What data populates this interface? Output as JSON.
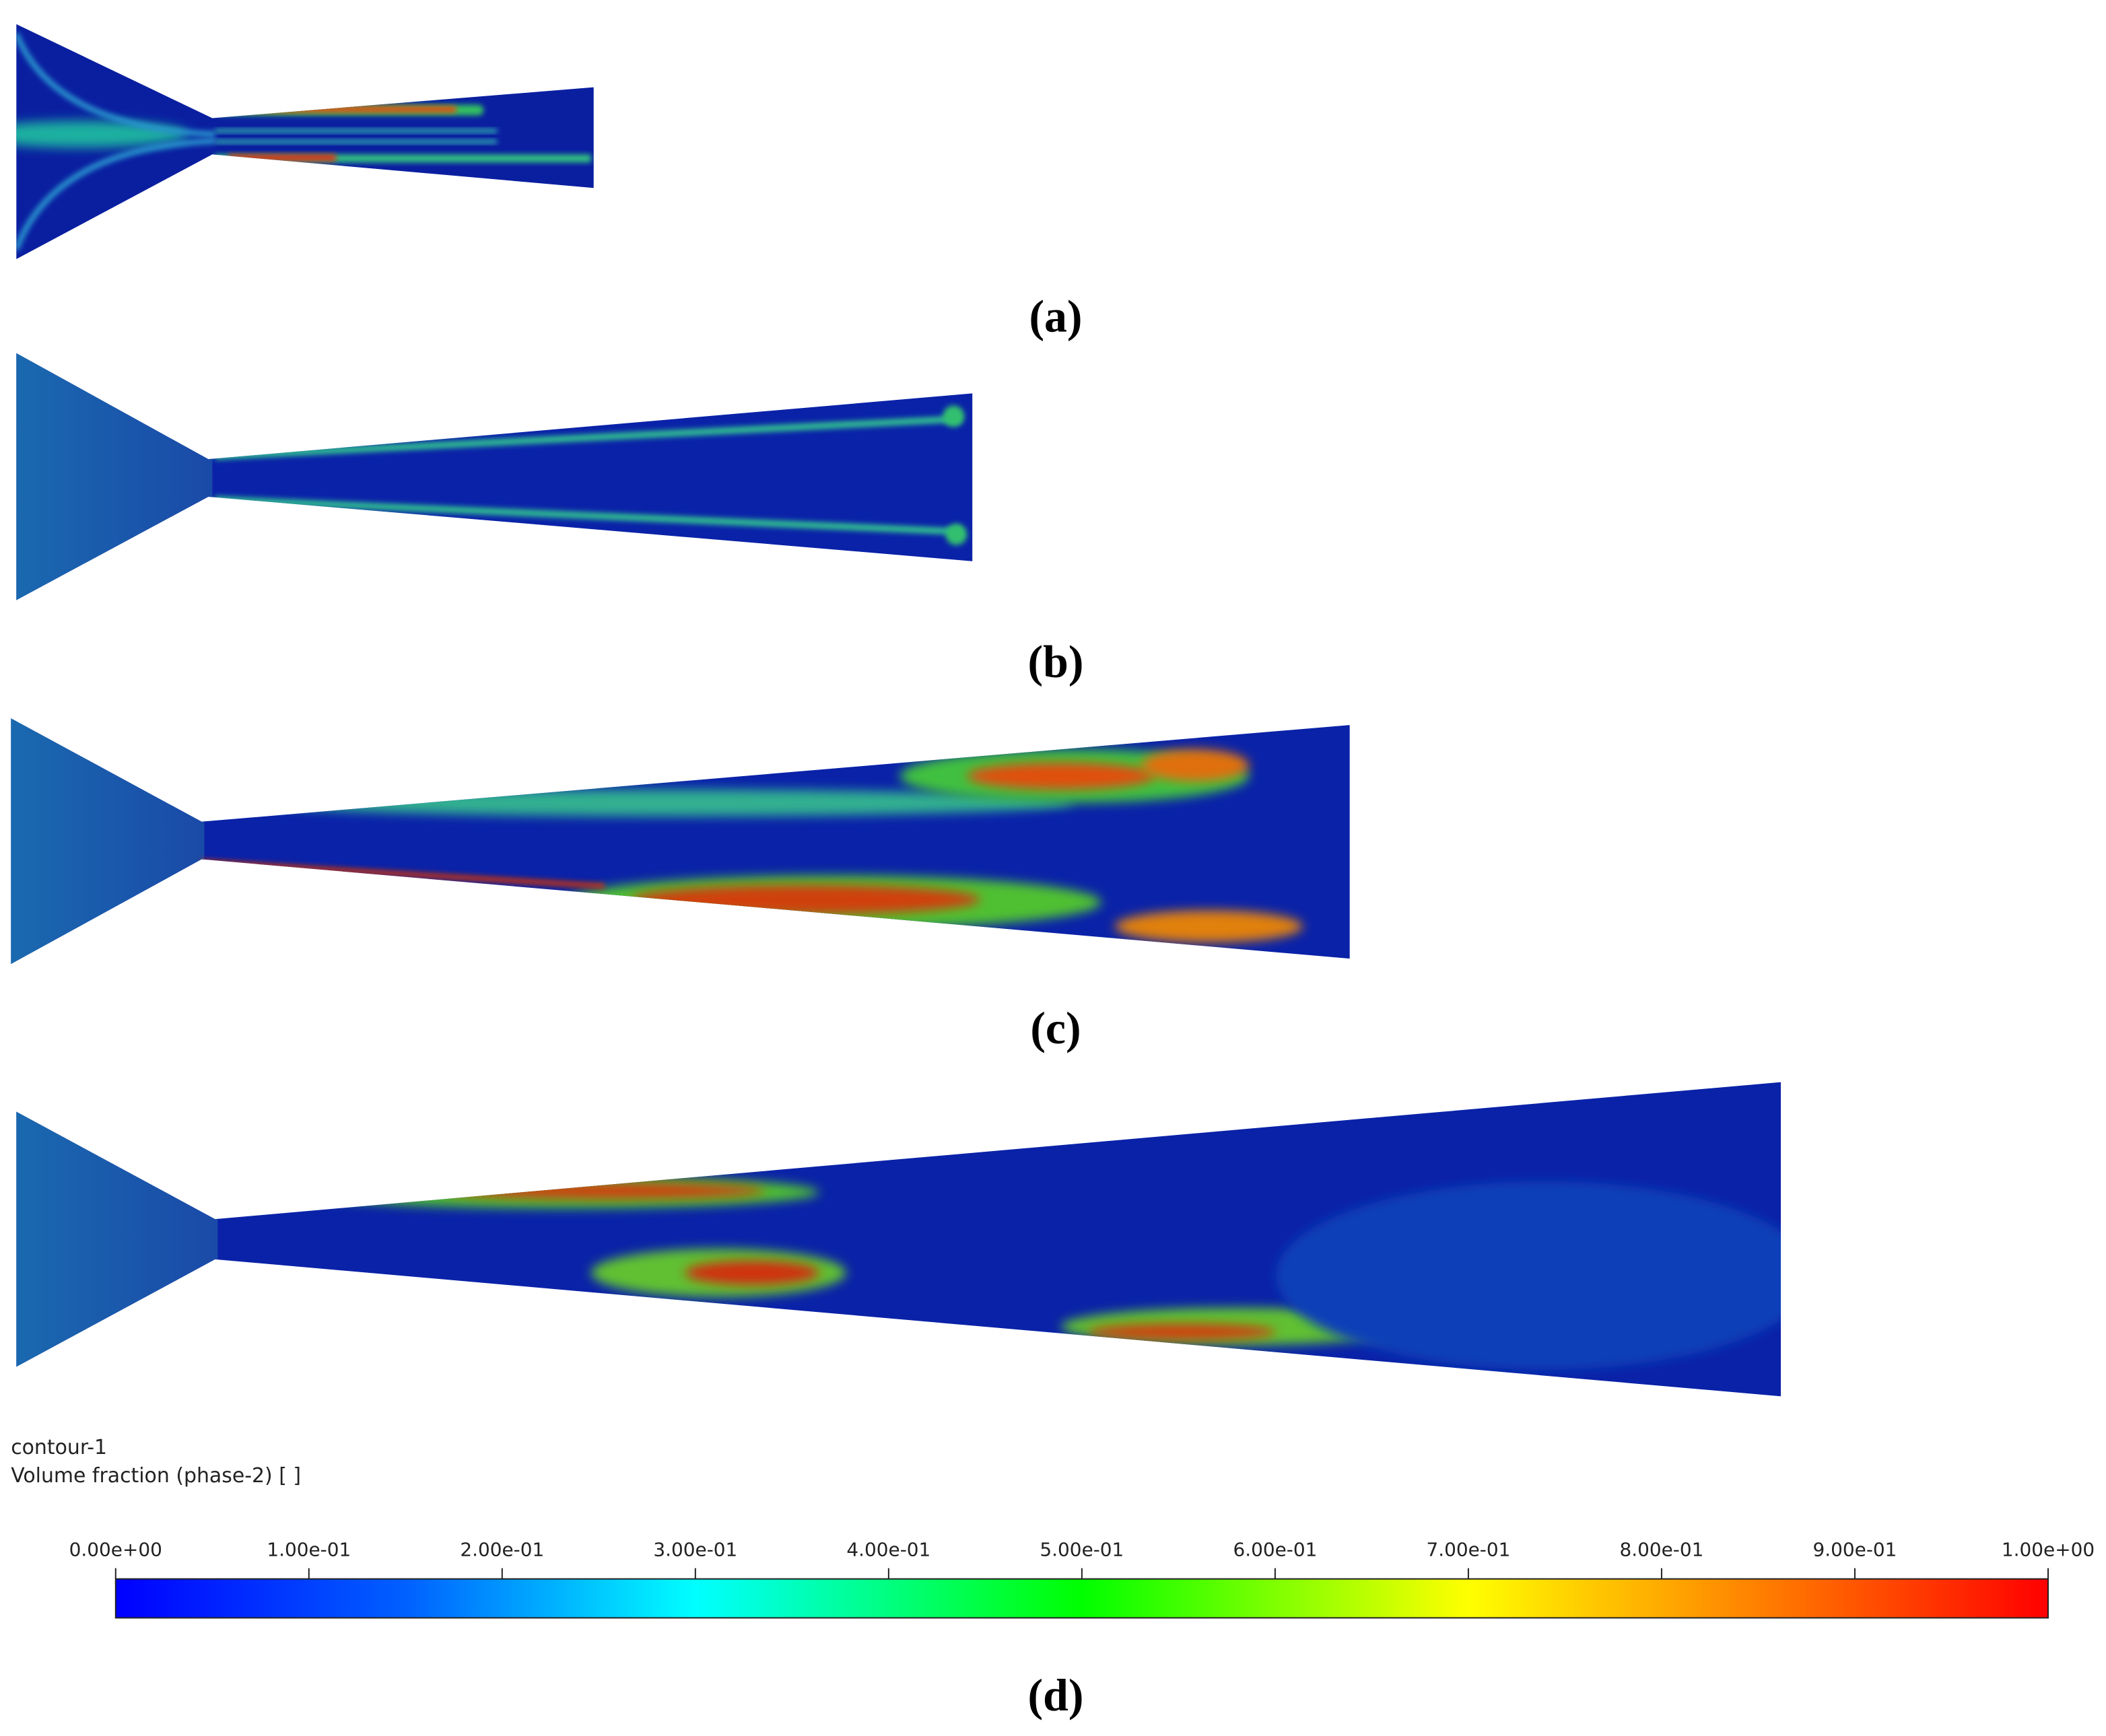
{
  "panels": [
    {
      "label": "(a)"
    },
    {
      "label": "(b)"
    },
    {
      "label": "(c)"
    },
    {
      "label": "(d)"
    }
  ],
  "legend": {
    "name": "contour-1",
    "title": "Volume fraction (phase-2)  [ ]"
  },
  "colorbar": {
    "lim": [
      0,
      1
    ],
    "ticks": [
      {
        "value": 0,
        "label": "0.00e+00"
      },
      {
        "value": 0.1,
        "label": "1.00e-01"
      },
      {
        "value": 0.2,
        "label": "2.00e-01"
      },
      {
        "value": 0.3,
        "label": "3.00e-01"
      },
      {
        "value": 0.4,
        "label": "4.00e-01"
      },
      {
        "value": 0.5,
        "label": "5.00e-01"
      },
      {
        "value": 0.6,
        "label": "6.00e-01"
      },
      {
        "value": 0.7,
        "label": "7.00e-01"
      },
      {
        "value": 0.8,
        "label": "8.00e-01"
      },
      {
        "value": 0.9,
        "label": "9.00e-01"
      },
      {
        "value": 1,
        "label": "1.00e+00"
      }
    ]
  }
}
